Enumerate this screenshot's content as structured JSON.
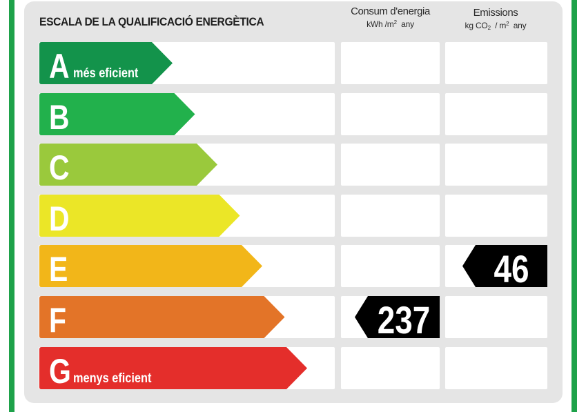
{
  "chart_data": {
    "type": "table",
    "title": "ESCALA DE LA QUALIFICACIÓ ENERGÈTICA",
    "columns": [
      {
        "name": "Consum d'energia",
        "unit_prefix": "kWh /m",
        "unit_sup": "2",
        "unit_suffix": "any"
      },
      {
        "name": "Emissions",
        "unit_prefix": "kg CO",
        "unit_sub": "2",
        "unit_mid": "/ m",
        "unit_sup": "2",
        "unit_suffix": "any"
      }
    ],
    "classes": [
      {
        "letter": "A",
        "note": "més eficient",
        "color": "#13934b"
      },
      {
        "letter": "B",
        "note": "",
        "color": "#22b14c"
      },
      {
        "letter": "C",
        "note": "",
        "color": "#9ac93c"
      },
      {
        "letter": "D",
        "note": "",
        "color": "#ebe627"
      },
      {
        "letter": "E",
        "note": "",
        "color": "#f2b619"
      },
      {
        "letter": "F",
        "note": "",
        "color": "#e37428"
      },
      {
        "letter": "G",
        "note": "menys eficient",
        "color": "#e42e2b"
      }
    ],
    "ratings": [
      {
        "column": "Consum d'energia",
        "class": "F",
        "value": 237
      },
      {
        "column": "Emissions",
        "class": "E",
        "value": 46
      }
    ]
  }
}
